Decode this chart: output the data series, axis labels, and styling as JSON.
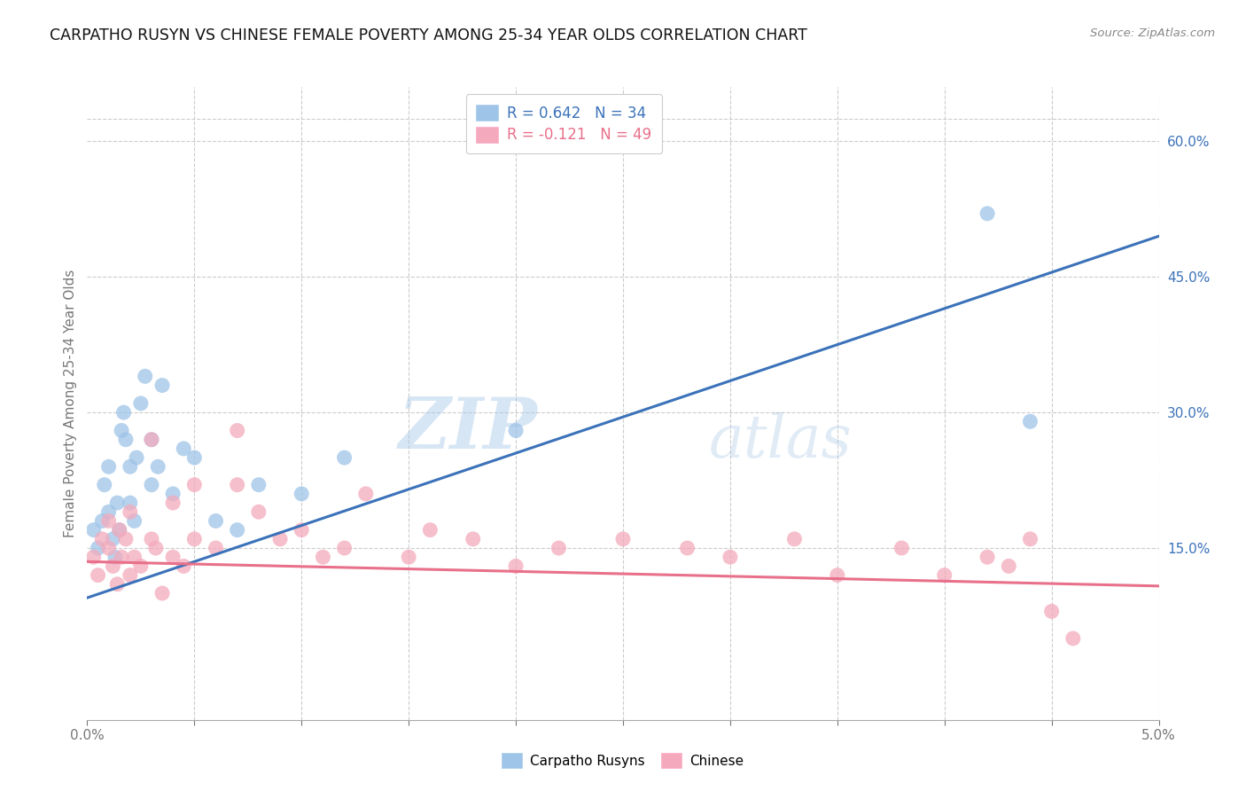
{
  "title": "CARPATHO RUSYN VS CHINESE FEMALE POVERTY AMONG 25-34 YEAR OLDS CORRELATION CHART",
  "source": "Source: ZipAtlas.com",
  "ylabel": "Female Poverty Among 25-34 Year Olds",
  "xmin": 0.0,
  "xmax": 0.05,
  "ymin": -0.04,
  "ymax": 0.66,
  "right_yticks": [
    0.15,
    0.3,
    0.45,
    0.6
  ],
  "right_yticklabels": [
    "15.0%",
    "30.0%",
    "45.0%",
    "60.0%"
  ],
  "blue_R": 0.642,
  "blue_N": 34,
  "pink_R": -0.121,
  "pink_N": 49,
  "legend_label_blue": "Carpatho Rusyns",
  "legend_label_pink": "Chinese",
  "blue_color": "#9EC4E8",
  "pink_color": "#F4AABC",
  "blue_line_color": "#3B72B9",
  "pink_line_color": "#E8708A",
  "watermark_zip": "ZIP",
  "watermark_atlas": "atlas",
  "blue_line_x": [
    0.0,
    0.05
  ],
  "blue_line_y": [
    0.095,
    0.495
  ],
  "pink_line_x": [
    0.0,
    0.05
  ],
  "pink_line_y": [
    0.135,
    0.108
  ],
  "blue_scatter_x": [
    0.0003,
    0.0005,
    0.0007,
    0.0008,
    0.001,
    0.001,
    0.0012,
    0.0013,
    0.0014,
    0.0015,
    0.0016,
    0.0017,
    0.0018,
    0.002,
    0.002,
    0.0022,
    0.0023,
    0.0025,
    0.0027,
    0.003,
    0.003,
    0.0033,
    0.0035,
    0.004,
    0.0045,
    0.005,
    0.006,
    0.007,
    0.008,
    0.01,
    0.012,
    0.02,
    0.042,
    0.044
  ],
  "blue_scatter_y": [
    0.17,
    0.15,
    0.18,
    0.22,
    0.19,
    0.24,
    0.16,
    0.14,
    0.2,
    0.17,
    0.28,
    0.3,
    0.27,
    0.2,
    0.24,
    0.18,
    0.25,
    0.31,
    0.34,
    0.22,
    0.27,
    0.24,
    0.33,
    0.21,
    0.26,
    0.25,
    0.18,
    0.17,
    0.22,
    0.21,
    0.25,
    0.28,
    0.52,
    0.29
  ],
  "pink_scatter_x": [
    0.0003,
    0.0005,
    0.0007,
    0.001,
    0.001,
    0.0012,
    0.0014,
    0.0015,
    0.0016,
    0.0018,
    0.002,
    0.002,
    0.0022,
    0.0025,
    0.003,
    0.003,
    0.0032,
    0.0035,
    0.004,
    0.004,
    0.0045,
    0.005,
    0.005,
    0.006,
    0.007,
    0.007,
    0.008,
    0.009,
    0.01,
    0.011,
    0.012,
    0.013,
    0.015,
    0.016,
    0.018,
    0.02,
    0.022,
    0.025,
    0.028,
    0.03,
    0.033,
    0.035,
    0.038,
    0.04,
    0.042,
    0.043,
    0.044,
    0.045,
    0.046
  ],
  "pink_scatter_y": [
    0.14,
    0.12,
    0.16,
    0.15,
    0.18,
    0.13,
    0.11,
    0.17,
    0.14,
    0.16,
    0.12,
    0.19,
    0.14,
    0.13,
    0.16,
    0.27,
    0.15,
    0.1,
    0.14,
    0.2,
    0.13,
    0.16,
    0.22,
    0.15,
    0.22,
    0.28,
    0.19,
    0.16,
    0.17,
    0.14,
    0.15,
    0.21,
    0.14,
    0.17,
    0.16,
    0.13,
    0.15,
    0.16,
    0.15,
    0.14,
    0.16,
    0.12,
    0.15,
    0.12,
    0.14,
    0.13,
    0.16,
    0.08,
    0.05
  ]
}
